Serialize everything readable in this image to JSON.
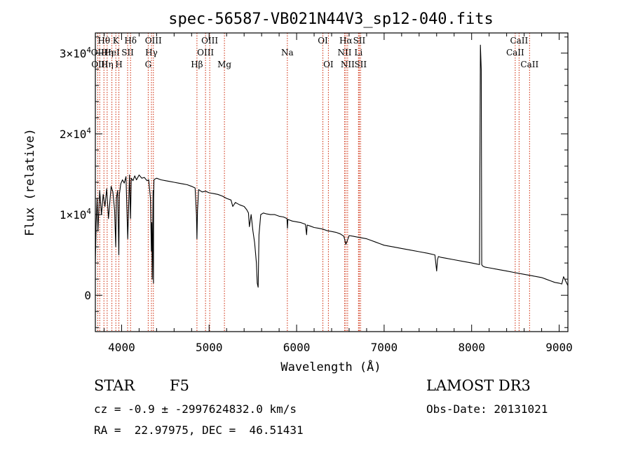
{
  "chart_data": {
    "type": "line",
    "title": "spec-56587-VB021N44V3_sp12-040.fits",
    "xlabel": "Wavelength (Å)",
    "ylabel": "Flux (relative)",
    "xlim": [
      3700,
      9100
    ],
    "ylim": [
      -4500,
      32500
    ],
    "x_ticks": [
      4000,
      5000,
      6000,
      7000,
      8000,
      9000
    ],
    "y_ticks": [
      {
        "value": 0,
        "mantissa": "0",
        "exp": ""
      },
      {
        "value": 10000,
        "mantissa": "1×10",
        "exp": "4"
      },
      {
        "value": 20000,
        "mantissa": "2×10",
        "exp": "4"
      },
      {
        "value": 30000,
        "mantissa": "3×10",
        "exp": "4"
      }
    ],
    "series": [
      {
        "name": "spectrum",
        "x": [
          3700,
          3710,
          3720,
          3730,
          3750,
          3770,
          3790,
          3810,
          3830,
          3850,
          3880,
          3900,
          3920,
          3933,
          3940,
          3955,
          3968,
          3975,
          3990,
          4010,
          4030,
          4050,
          4070,
          4090,
          4102,
          4110,
          4130,
          4150,
          4170,
          4200,
          4230,
          4260,
          4290,
          4310,
          4330,
          4340,
          4345,
          4350,
          4360,
          4362,
          4364,
          4366,
          4370,
          4380,
          4400,
          4450,
          4500,
          4550,
          4600,
          4650,
          4700,
          4750,
          4800,
          4840,
          4855,
          4861,
          4867,
          4880,
          4920,
          4960,
          5000,
          5050,
          5100,
          5150,
          5200,
          5250,
          5270,
          5300,
          5350,
          5400,
          5430,
          5450,
          5460,
          5480,
          5500,
          5520,
          5540,
          5550,
          5560,
          5570,
          5590,
          5620,
          5650,
          5700,
          5750,
          5800,
          5850,
          5890,
          5895,
          5900,
          5950,
          6000,
          6050,
          6100,
          6114,
          6120,
          6150,
          6200,
          6250,
          6300,
          6350,
          6400,
          6450,
          6500,
          6540,
          6563,
          6580,
          6600,
          6650,
          6700,
          6750,
          6800,
          6850,
          6900,
          6950,
          7000,
          7100,
          7200,
          7300,
          7400,
          7500,
          7580,
          7600,
          7610,
          7620,
          7650,
          7700,
          7800,
          7900,
          8000,
          8050,
          8090,
          8100,
          8110,
          8115,
          8120,
          8130,
          8150,
          8200,
          8300,
          8400,
          8500,
          8600,
          8700,
          8800,
          8850,
          8900,
          8950,
          9000,
          9030,
          9050,
          9100
        ],
        "values": [
          4000,
          9000,
          12000,
          8000,
          13000,
          10000,
          12500,
          11000,
          13200,
          9500,
          13500,
          12800,
          10500,
          6000,
          12000,
          13000,
          5000,
          12500,
          13800,
          14300,
          13900,
          14700,
          7000,
          14900,
          9500,
          14500,
          14200,
          14800,
          14300,
          14900,
          14500,
          14600,
          14200,
          14300,
          12000,
          5500,
          9000,
          2000,
          13000,
          4000,
          1500,
          12000,
          14300,
          14400,
          14500,
          14300,
          14200,
          14100,
          14000,
          13900,
          13800,
          13700,
          13500,
          13300,
          10000,
          7000,
          10500,
          13100,
          12800,
          12900,
          12700,
          12600,
          12500,
          12300,
          12000,
          11800,
          11000,
          11500,
          11200,
          11000,
          10600,
          10200,
          8500,
          10000,
          8000,
          6500,
          4000,
          1500,
          1000,
          7500,
          10000,
          10200,
          10100,
          10000,
          10000,
          9800,
          9700,
          9500,
          8300,
          9400,
          9200,
          9100,
          9000,
          8800,
          7500,
          8700,
          8600,
          8400,
          8300,
          8200,
          8000,
          7900,
          7800,
          7600,
          7300,
          6300,
          6800,
          7400,
          7300,
          7200,
          7100,
          7000,
          6800,
          6600,
          6400,
          6200,
          6000,
          5800,
          5600,
          5400,
          5200,
          5000,
          3000,
          4400,
          4800,
          4700,
          4600,
          4400,
          4200,
          4000,
          3900,
          3800,
          31000,
          28000,
          3800,
          3700,
          3600,
          3500,
          3400,
          3200,
          3000,
          2800,
          2600,
          2400,
          2200,
          2000,
          1800,
          1600,
          1500,
          1400,
          2300,
          1200
        ]
      }
    ],
    "lines": [
      {
        "name": "Hθ",
        "wl": 3798,
        "row": 0
      },
      {
        "name": "OII",
        "wl": 3727,
        "row": 1
      },
      {
        "name": "OIII",
        "wl": 3750,
        "row": 2
      },
      {
        "name": "Hη",
        "wl": 3835,
        "row": 1
      },
      {
        "name": "Hη",
        "wl": 3835,
        "row": 2
      },
      {
        "name": "HeI",
        "wl": 3889,
        "row": 1
      },
      {
        "name": "K",
        "wl": 3934,
        "row": 0
      },
      {
        "name": "SII",
        "wl": 4069,
        "row": 1
      },
      {
        "name": "H",
        "wl": 3969,
        "row": 2
      },
      {
        "name": "Hδ",
        "wl": 4102,
        "row": 0
      },
      {
        "name": "OIII",
        "wl": 4363,
        "row": 0
      },
      {
        "name": "Hγ",
        "wl": 4341,
        "row": 1
      },
      {
        "name": "G",
        "wl": 4304,
        "row": 2
      },
      {
        "name": "OIII",
        "wl": 5007,
        "row": 0
      },
      {
        "name": "OIII",
        "wl": 4959,
        "row": 1
      },
      {
        "name": "Hβ",
        "wl": 4861,
        "row": 2
      },
      {
        "name": "Mg",
        "wl": 5175,
        "row": 2
      },
      {
        "name": "Na",
        "wl": 5894,
        "row": 1
      },
      {
        "name": "OI",
        "wl": 6300,
        "row": 0
      },
      {
        "name": "OI",
        "wl": 6363,
        "row": 2
      },
      {
        "name": "Hα",
        "wl": 6563,
        "row": 0
      },
      {
        "name": "NII",
        "wl": 6548,
        "row": 1
      },
      {
        "name": "NII",
        "wl": 6583,
        "row": 2
      },
      {
        "name": "SII",
        "wl": 6716,
        "row": 0
      },
      {
        "name": "Li",
        "wl": 6707,
        "row": 1
      },
      {
        "name": "SII",
        "wl": 6731,
        "row": 2
      },
      {
        "name": "CaII",
        "wl": 8542,
        "row": 0
      },
      {
        "name": "CaII",
        "wl": 8498,
        "row": 1
      },
      {
        "name": "CaII",
        "wl": 8662,
        "row": 2
      }
    ]
  },
  "info": {
    "type_label": "STAR",
    "subclass": "F5",
    "survey": "LAMOST DR3",
    "cz": "cz = -0.9 ± -2997624832.0 km/s",
    "obs_date": "Obs-Date: 20131021",
    "radec": "RA =  22.97975, DEC =  46.51431"
  },
  "colors": {
    "axis": "#000000",
    "spectrum": "#000000",
    "line_marker": "#cc2200"
  }
}
